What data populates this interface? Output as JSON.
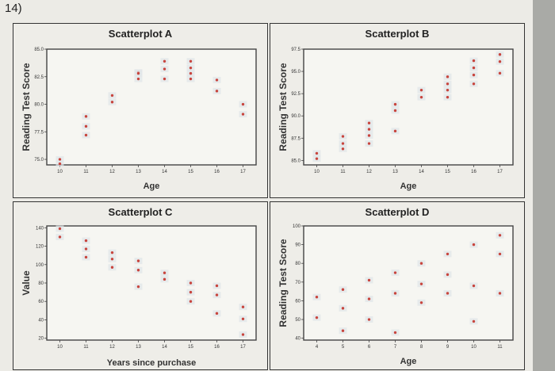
{
  "question_label": "14)",
  "chart_data": [
    {
      "type": "scatter",
      "title": "Scatterplot A",
      "xlabel": "Age",
      "ylabel": "Reading Test Score",
      "xlim": [
        9.5,
        17.5
      ],
      "ylim": [
        74.5,
        85.0
      ],
      "xticks": [
        10,
        11,
        12,
        13,
        14,
        15,
        16,
        17
      ],
      "yticks": [
        75.0,
        77.5,
        80.0,
        82.5,
        85.0
      ],
      "ytick_labels": [
        "75.0",
        "77.5",
        "80.0",
        "82.5",
        "85.0"
      ],
      "x": [
        10,
        10,
        11,
        11,
        11,
        12,
        12,
        13,
        13,
        13,
        14,
        14,
        14,
        15,
        15,
        15,
        15,
        16,
        16,
        17,
        17
      ],
      "y": [
        75.0,
        74.6,
        78.9,
        78.0,
        77.2,
        80.8,
        80.2,
        82.9,
        82.8,
        82.3,
        83.9,
        83.2,
        82.3,
        83.9,
        83.3,
        82.8,
        82.3,
        82.2,
        81.2,
        80.0,
        79.1
      ]
    },
    {
      "type": "scatter",
      "title": "Scatterplot B",
      "xlabel": "Age",
      "ylabel": "Reading Test Score",
      "xlim": [
        9.5,
        17.5
      ],
      "ylim": [
        84.5,
        97.5
      ],
      "xticks": [
        10,
        11,
        12,
        13,
        14,
        15,
        16,
        17
      ],
      "yticks": [
        85.0,
        87.5,
        90.0,
        92.5,
        95.0,
        97.5
      ],
      "ytick_labels": [
        "85.0",
        "87.5",
        "90.0",
        "92.5",
        "95.0",
        "97.5"
      ],
      "x": [
        10,
        10,
        11,
        11,
        11,
        12,
        12,
        12,
        12,
        13,
        13,
        13,
        14,
        14,
        15,
        15,
        15,
        15,
        16,
        16,
        16,
        16,
        17,
        17,
        17
      ],
      "y": [
        85.8,
        85.2,
        87.7,
        86.9,
        86.3,
        89.2,
        88.5,
        87.8,
        86.9,
        91.3,
        90.6,
        88.3,
        92.9,
        92.1,
        94.4,
        93.6,
        92.9,
        92.1,
        96.2,
        95.4,
        94.6,
        93.6,
        96.9,
        96.1,
        94.8
      ]
    },
    {
      "type": "scatter",
      "title": "Scatterplot C",
      "xlabel": "Years since purchase",
      "ylabel": "Value",
      "xlim": [
        9.5,
        17.5
      ],
      "ylim": [
        18,
        142
      ],
      "xticks": [
        10,
        11,
        12,
        13,
        14,
        15,
        16,
        17
      ],
      "yticks": [
        20,
        40,
        60,
        80,
        100,
        120,
        140
      ],
      "ytick_labels": [
        "20",
        "40",
        "60",
        "80",
        "100",
        "120",
        "140"
      ],
      "x": [
        10,
        10,
        11,
        11,
        11,
        12,
        12,
        12,
        13,
        13,
        13,
        14,
        14,
        15,
        15,
        15,
        16,
        16,
        16,
        17,
        17,
        17
      ],
      "y": [
        139,
        130,
        126,
        117,
        108,
        113,
        106,
        97,
        104,
        94,
        76,
        91,
        84,
        80,
        70,
        60,
        77,
        67,
        47,
        54,
        41,
        24
      ]
    },
    {
      "type": "scatter",
      "title": "Scatterplot D",
      "xlabel": "Age",
      "ylabel": "Reading Test Score",
      "xlim": [
        3.5,
        11.5
      ],
      "ylim": [
        39,
        100
      ],
      "xticks": [
        4,
        5,
        6,
        7,
        8,
        9,
        10,
        11
      ],
      "yticks": [
        40,
        50,
        60,
        70,
        80,
        90,
        100
      ],
      "ytick_labels": [
        "40",
        "50",
        "60",
        "70",
        "80",
        "90",
        "100"
      ],
      "x": [
        4,
        4,
        5,
        5,
        5,
        6,
        6,
        6,
        7,
        7,
        7,
        8,
        8,
        8,
        9,
        9,
        9,
        10,
        10,
        10,
        11,
        11,
        11
      ],
      "y": [
        62,
        51,
        66,
        56,
        44,
        71,
        61,
        50,
        75,
        64,
        43,
        80,
        69,
        59,
        85,
        74,
        64,
        90,
        68,
        49,
        95,
        85,
        64
      ]
    }
  ]
}
